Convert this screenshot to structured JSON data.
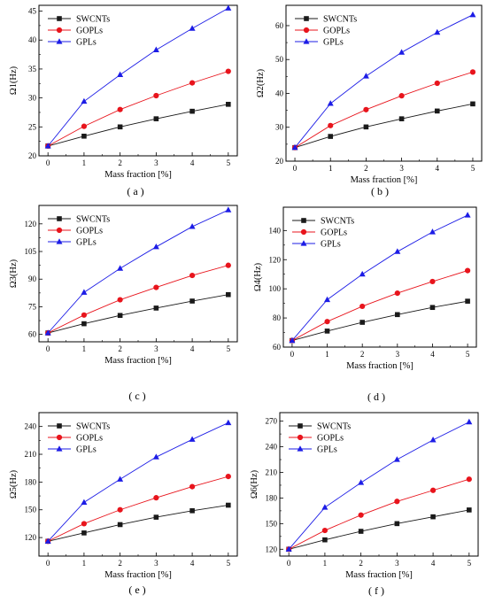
{
  "chart_data": [
    {
      "type": "line",
      "caption": "( a )",
      "xlabel": "Mass fraction [%]",
      "ylabel": "Ω1(Hz)",
      "x": [
        0,
        1,
        2,
        3,
        4,
        5
      ],
      "xlim": [
        -0.25,
        5.25
      ],
      "ylim": [
        20,
        46
      ],
      "yticks": [
        20,
        25,
        30,
        35,
        40,
        45
      ],
      "legend_position": "top-left",
      "series": [
        {
          "name": "SWCNTs",
          "values": [
            21.7,
            23.4,
            25.0,
            26.4,
            27.7,
            28.9
          ]
        },
        {
          "name": "GOPLs",
          "values": [
            21.7,
            25.1,
            28.0,
            30.4,
            32.6,
            34.6
          ]
        },
        {
          "name": "GPLs",
          "values": [
            21.7,
            29.4,
            34.0,
            38.3,
            42.0,
            45.5
          ]
        }
      ]
    },
    {
      "type": "line",
      "caption": "( b )",
      "xlabel": "Mass fraction [%]",
      "ylabel": "Ω2(Hz)",
      "x": [
        0,
        1,
        2,
        3,
        4,
        5
      ],
      "xlim": [
        -0.25,
        5.25
      ],
      "ylim": [
        20,
        66
      ],
      "yticks": [
        20,
        30,
        40,
        50,
        60
      ],
      "legend_position": "top-left",
      "series": [
        {
          "name": "SWCNTs",
          "values": [
            24.0,
            27.3,
            30.1,
            32.5,
            34.8,
            36.9
          ]
        },
        {
          "name": "GOPLs",
          "values": [
            24.0,
            30.5,
            35.2,
            39.3,
            43.0,
            46.3
          ]
        },
        {
          "name": "GPLs",
          "values": [
            24.0,
            37.0,
            45.1,
            52.1,
            58.0,
            63.2
          ]
        }
      ]
    },
    {
      "type": "line",
      "caption": "( c )",
      "xlabel": "Mass fraction [%]",
      "ylabel": "Ω3(Hz)",
      "x": [
        0,
        1,
        2,
        3,
        4,
        5
      ],
      "xlim": [
        -0.25,
        5.25
      ],
      "ylim": [
        56,
        130
      ],
      "yticks": [
        60,
        75,
        90,
        105,
        120
      ],
      "legend_position": "top-left",
      "series": [
        {
          "name": "SWCNTs",
          "values": [
            60.8,
            65.8,
            70.3,
            74.3,
            78.1,
            81.6
          ]
        },
        {
          "name": "GOPLs",
          "values": [
            60.8,
            70.5,
            78.8,
            85.5,
            92.0,
            97.5
          ]
        },
        {
          "name": "GPLs",
          "values": [
            60.8,
            82.8,
            95.8,
            107.5,
            118.5,
            127.5
          ]
        }
      ]
    },
    {
      "type": "line",
      "caption": "( d )",
      "xlabel": "Mass fraction [%]",
      "ylabel": "Ω4(Hz)",
      "x": [
        0,
        1,
        2,
        3,
        4,
        5
      ],
      "xlim": [
        -0.25,
        5.25
      ],
      "ylim": [
        60,
        156
      ],
      "yticks": [
        60,
        80,
        100,
        120,
        140
      ],
      "legend_position": "top-left",
      "series": [
        {
          "name": "SWCNTs",
          "values": [
            64.5,
            71.0,
            77.0,
            82.3,
            87.2,
            91.5
          ]
        },
        {
          "name": "GOPLs",
          "values": [
            64.5,
            77.5,
            88.0,
            97.0,
            105.0,
            112.5
          ]
        },
        {
          "name": "GPLs",
          "values": [
            64.5,
            92.5,
            110.0,
            125.5,
            139.0,
            150.5
          ]
        }
      ]
    },
    {
      "type": "line",
      "caption": "( e )",
      "xlabel": "Mass fraction [%]",
      "ylabel": "Ω5(Hz)",
      "x": [
        0,
        1,
        2,
        3,
        4,
        5
      ],
      "xlim": [
        -0.25,
        5.25
      ],
      "ylim": [
        100,
        255
      ],
      "yticks": [
        120,
        150,
        180,
        210,
        240
      ],
      "legend_position": "top-left",
      "series": [
        {
          "name": "SWCNTs",
          "values": [
            116,
            125,
            134,
            142,
            149,
            155
          ]
        },
        {
          "name": "GOPLs",
          "values": [
            116,
            135,
            150,
            163,
            175,
            186
          ]
        },
        {
          "name": "GPLs",
          "values": [
            116,
            158,
            183,
            207,
            226,
            244
          ]
        }
      ]
    },
    {
      "type": "line",
      "caption": "( f )",
      "xlabel": "Mass fraction [%]",
      "ylabel": "Ω6(Hz)",
      "x": [
        0,
        1,
        2,
        3,
        4,
        5
      ],
      "xlim": [
        -0.25,
        5.25
      ],
      "ylim": [
        112,
        280
      ],
      "yticks": [
        120,
        150,
        180,
        210,
        240,
        270
      ],
      "legend_position": "top-left",
      "series": [
        {
          "name": "SWCNTs",
          "values": [
            120,
            131,
            141,
            150,
            158,
            166
          ]
        },
        {
          "name": "GOPLs",
          "values": [
            120,
            142,
            160,
            176,
            189,
            202
          ]
        },
        {
          "name": "GPLs",
          "values": [
            120,
            169,
            198,
            225,
            248,
            269
          ]
        }
      ]
    }
  ],
  "colors": {
    "SWCNTs": "#1a1a1a",
    "GOPLs": "#e8141c",
    "GPLs": "#1c1ce6"
  },
  "markers": {
    "SWCNTs": "square",
    "GOPLs": "circle",
    "GPLs": "triangle"
  }
}
